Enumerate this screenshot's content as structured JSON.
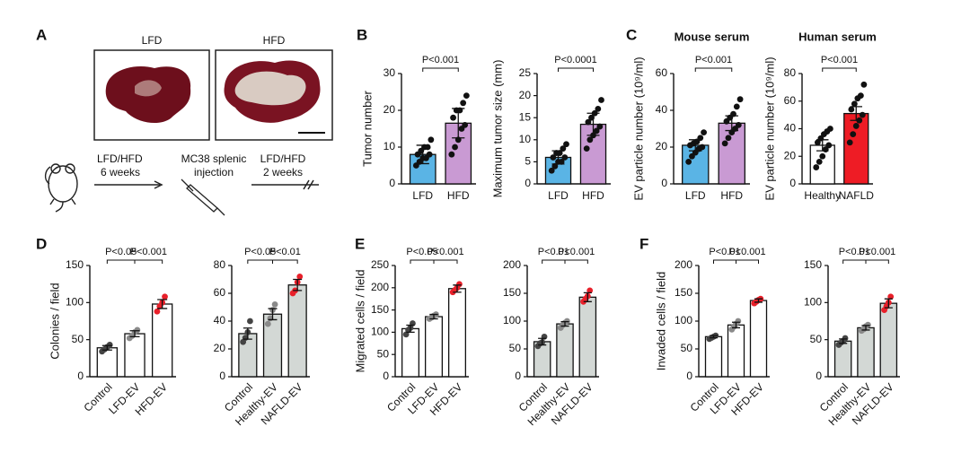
{
  "panel_labels": [
    "A",
    "B",
    "C",
    "D",
    "E",
    "F"
  ],
  "panel_a": {
    "image_labels": [
      "LFD",
      "HFD"
    ],
    "steps": [
      [
        "LFD/HFD",
        "6 weeks"
      ],
      [
        "MC38 splenic",
        "injection"
      ],
      [
        "LFD/HFD",
        "2 weeks"
      ]
    ]
  },
  "chart_data": [
    {
      "type": "bar",
      "ylabel": "Tumor number",
      "categories": [
        "LFD",
        "HFD"
      ],
      "values": [
        8,
        16.5
      ],
      "errors": [
        2.5,
        4
      ],
      "points": [
        [
          5,
          6,
          7,
          7,
          8,
          8,
          9,
          10,
          10,
          12
        ],
        [
          8,
          10,
          12,
          15,
          16,
          18,
          20,
          20,
          22,
          24
        ]
      ],
      "colors": [
        "#5ab4e5",
        "#c99ad3"
      ],
      "point_colors": [
        "#111111",
        "#111111"
      ],
      "ylim": [
        0,
        30
      ],
      "yticks": [
        0,
        10,
        20,
        30
      ],
      "annotations": [
        "P<0.001"
      ]
    },
    {
      "type": "bar",
      "ylabel": "Maximum tumor size (mm)",
      "categories": [
        "LFD",
        "HFD"
      ],
      "values": [
        6,
        13.5
      ],
      "errors": [
        1.5,
        2.5
      ],
      "points": [
        [
          3,
          4,
          5,
          5,
          6,
          6,
          7,
          7,
          8,
          9
        ],
        [
          8,
          10,
          11,
          12,
          13,
          14,
          15,
          16,
          17,
          19
        ]
      ],
      "colors": [
        "#5ab4e5",
        "#c99ad3"
      ],
      "point_colors": [
        "#111111",
        "#111111"
      ],
      "ylim": [
        0,
        25
      ],
      "yticks": [
        0,
        5,
        10,
        15,
        20,
        25
      ],
      "annotations": [
        "P<0.0001"
      ]
    },
    {
      "type": "bar",
      "title": "Mouse serum",
      "ylabel": "EV particle number (10⁹/ml)",
      "categories": [
        "LFD",
        "HFD"
      ],
      "values": [
        21,
        33
      ],
      "errors": [
        3,
        4
      ],
      "points": [
        [
          12,
          15,
          17,
          19,
          20,
          21,
          22,
          23,
          25,
          28
        ],
        [
          22,
          25,
          28,
          30,
          32,
          34,
          36,
          38,
          42,
          46
        ]
      ],
      "colors": [
        "#5ab4e5",
        "#c99ad3"
      ],
      "point_colors": [
        "#111111",
        "#111111"
      ],
      "ylim": [
        0,
        60
      ],
      "yticks": [
        0,
        20,
        40,
        60
      ],
      "annotations": [
        "P<0.001"
      ]
    },
    {
      "type": "bar",
      "title": "Human serum",
      "ylabel": "EV particle number (10⁹/ml)",
      "categories": [
        "Healthy",
        "NAFLD"
      ],
      "values": [
        28,
        51
      ],
      "errors": [
        4,
        5
      ],
      "points": [
        [
          12,
          16,
          20,
          25,
          28,
          30,
          33,
          36,
          38,
          40
        ],
        [
          30,
          36,
          42,
          46,
          50,
          54,
          58,
          62,
          64,
          72
        ]
      ],
      "colors": [
        "#ffffff",
        "#ee1c25"
      ],
      "point_colors": [
        "#111111",
        "#111111"
      ],
      "ylim": [
        0,
        80
      ],
      "yticks": [
        0,
        20,
        40,
        60,
        80
      ],
      "annotations": [
        "P<0.001"
      ]
    },
    {
      "type": "bar",
      "ylabel": "Colonies / field",
      "categories": [
        "Control",
        "LFD-EV",
        "HFD-EV"
      ],
      "values": [
        39,
        58,
        98
      ],
      "errors": [
        3,
        4,
        6
      ],
      "points": [
        [
          34,
          37,
          40,
          43
        ],
        [
          52,
          55,
          60,
          63
        ],
        [
          88,
          95,
          100,
          108
        ]
      ],
      "colors": [
        "#ffffff",
        "#ffffff",
        "#ffffff"
      ],
      "point_colors": [
        "#444444",
        "#8a8a8a",
        "#e8202a"
      ],
      "ylim": [
        0,
        150
      ],
      "yticks": [
        0,
        50,
        100,
        150
      ],
      "annotations": [
        "P<0.05",
        "P<0.001"
      ]
    },
    {
      "type": "bar",
      "categories": [
        "Control",
        "Healthy-EV",
        "NAFLD-EV"
      ],
      "values": [
        31,
        45,
        66
      ],
      "errors": [
        4,
        4,
        4
      ],
      "points": [
        [
          25,
          28,
          32,
          40
        ],
        [
          38,
          42,
          48,
          52
        ],
        [
          60,
          62,
          68,
          72
        ]
      ],
      "colors": [
        "#d3d8d5",
        "#d3d8d5",
        "#d3d8d5"
      ],
      "point_colors": [
        "#444444",
        "#8a8a8a",
        "#e8202a"
      ],
      "ylim": [
        0,
        80
      ],
      "yticks": [
        0,
        20,
        40,
        60,
        80
      ],
      "annotations": [
        "P<0.05",
        "P<0.01"
      ]
    },
    {
      "type": "bar",
      "ylabel": "Migrated cells / field",
      "categories": [
        "Control",
        "LFD-EV",
        "HFD-EV"
      ],
      "values": [
        108,
        135,
        198
      ],
      "errors": [
        8,
        5,
        8
      ],
      "points": [
        [
          95,
          105,
          110,
          120
        ],
        [
          130,
          133,
          137,
          140
        ],
        [
          190,
          195,
          200,
          208
        ]
      ],
      "colors": [
        "#ffffff",
        "#ffffff",
        "#ffffff"
      ],
      "point_colors": [
        "#444444",
        "#8a8a8a",
        "#e8202a"
      ],
      "ylim": [
        0,
        250
      ],
      "yticks": [
        0,
        50,
        100,
        150,
        200,
        250
      ],
      "annotations": [
        "P<0.05",
        "P<0.001"
      ]
    },
    {
      "type": "bar",
      "categories": [
        "Control",
        "Healthy-EV",
        "NAFLD-EV"
      ],
      "values": [
        63,
        95,
        143
      ],
      "errors": [
        6,
        4,
        8
      ],
      "points": [
        [
          55,
          60,
          62,
          72
        ],
        [
          88,
          93,
          97,
          100
        ],
        [
          135,
          140,
          145,
          155
        ]
      ],
      "colors": [
        "#d3d8d5",
        "#d3d8d5",
        "#d3d8d5"
      ],
      "point_colors": [
        "#444444",
        "#8a8a8a",
        "#e8202a"
      ],
      "ylim": [
        0,
        200
      ],
      "yticks": [
        0,
        50,
        100,
        150,
        200
      ],
      "annotations": [
        "P<0.01",
        "P<0.001"
      ]
    },
    {
      "type": "bar",
      "ylabel": "Invaded cells / field",
      "categories": [
        "Control",
        "LFD-EV",
        "HFD-EV"
      ],
      "values": [
        72,
        93,
        137
      ],
      "errors": [
        2,
        5,
        3
      ],
      "points": [
        [
          68,
          70,
          72,
          74
        ],
        [
          85,
          90,
          95,
          100
        ],
        [
          132,
          135,
          138,
          140
        ]
      ],
      "colors": [
        "#ffffff",
        "#ffffff",
        "#ffffff"
      ],
      "point_colors": [
        "#444444",
        "#8a8a8a",
        "#e8202a"
      ],
      "ylim": [
        0,
        200
      ],
      "yticks": [
        0,
        50,
        100,
        150,
        200
      ],
      "annotations": [
        "P<0.01",
        "P<0.001"
      ]
    },
    {
      "type": "bar",
      "categories": [
        "Control",
        "Healthy-EV",
        "NAFLD-EV"
      ],
      "values": [
        48,
        66,
        99
      ],
      "errors": [
        3,
        3,
        6
      ],
      "points": [
        [
          43,
          46,
          48,
          52
        ],
        [
          62,
          64,
          68,
          70
        ],
        [
          90,
          95,
          100,
          108
        ]
      ],
      "colors": [
        "#d3d8d5",
        "#d3d8d5",
        "#d3d8d5"
      ],
      "point_colors": [
        "#444444",
        "#8a8a8a",
        "#e8202a"
      ],
      "ylim": [
        0,
        150
      ],
      "yticks": [
        0,
        50,
        100,
        150
      ],
      "annotations": [
        "P<0.01",
        "P<0.001"
      ]
    }
  ]
}
